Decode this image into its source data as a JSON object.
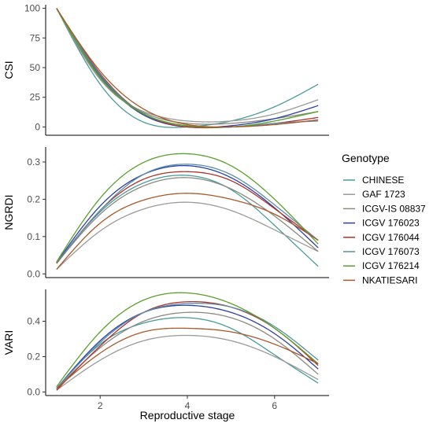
{
  "chart_data": {
    "type": "line",
    "xlabel": "Reproductive stage",
    "x_ticks": [
      "2",
      "4",
      "6"
    ],
    "xlim": [
      0.75,
      7.25
    ],
    "legend_title": "Genotype",
    "legend_position": "right",
    "grid": false,
    "x": [
      1,
      2,
      3,
      4,
      5,
      6,
      7
    ],
    "panels": [
      {
        "ylabel": "CSI",
        "ylim": [
          -7,
          103
        ],
        "y_ticks": [
          "0",
          "25",
          "50",
          "75",
          "100"
        ],
        "series": [
          {
            "name": "CHINESE",
            "values": [
              100,
              36,
              4,
              0,
              5,
              17,
              36
            ]
          },
          {
            "name": "GAF 1723",
            "values": [
              100,
              40,
              13,
              5,
              5,
              11,
              23
            ]
          },
          {
            "name": "ICGV-IS 08837",
            "values": [
              100,
              41,
              12,
              3,
              3,
              7,
              13
            ]
          },
          {
            "name": "ICGV 176023",
            "values": [
              100,
              43,
              10,
              0,
              1,
              7,
              18
            ]
          },
          {
            "name": "ICGV 176044",
            "values": [
              100,
              45,
              11,
              0,
              0,
              3,
              8
            ]
          },
          {
            "name": "ICGV 176073",
            "values": [
              100,
              44,
              11,
              1,
              0,
              3,
              5
            ]
          },
          {
            "name": "ICGV 176214",
            "values": [
              100,
              42,
              11,
              1,
              0,
              5,
              13
            ]
          },
          {
            "name": "NKATIESARI",
            "values": [
              100,
              47,
              15,
              2,
              0,
              2,
              6
            ]
          }
        ]
      },
      {
        "ylabel": "NGRDI",
        "ylim": [
          -0.01,
          0.34
        ],
        "y_ticks": [
          "0.0",
          "0.1",
          "0.2",
          "0.3"
        ],
        "series": [
          {
            "name": "CHINESE",
            "values": [
              0.03,
              0.166,
              0.244,
              0.264,
              0.226,
              0.13,
              0.02
            ]
          },
          {
            "name": "GAF 1723",
            "values": [
              0.012,
              0.115,
              0.174,
              0.192,
              0.17,
              0.118,
              0.06
            ]
          },
          {
            "name": "ICGV-IS 08837",
            "values": [
              0.028,
              0.16,
              0.236,
              0.258,
              0.228,
              0.155,
              0.06
            ]
          },
          {
            "name": "ICGV 176023",
            "values": [
              0.03,
              0.182,
              0.267,
              0.29,
              0.258,
              0.177,
              0.07
            ]
          },
          {
            "name": "ICGV 176044",
            "values": [
              0.028,
              0.17,
              0.254,
              0.274,
              0.25,
              0.175,
              0.09
            ]
          },
          {
            "name": "ICGV 176073",
            "values": [
              0.03,
              0.17,
              0.267,
              0.294,
              0.266,
              0.185,
              0.09
            ]
          },
          {
            "name": "ICGV 176214",
            "values": [
              0.032,
              0.203,
              0.299,
              0.322,
              0.29,
              0.2,
              0.08
            ]
          },
          {
            "name": "NKATIESARI",
            "values": [
              0.012,
              0.136,
              0.198,
              0.216,
              0.2,
              0.16,
              0.09
            ]
          }
        ]
      },
      {
        "ylabel": "VARI",
        "ylim": [
          -0.02,
          0.58
        ],
        "y_ticks": [
          "0.0",
          "0.2",
          "0.4"
        ],
        "series": [
          {
            "name": "CHINESE",
            "values": [
              0.02,
              0.27,
              0.39,
              0.42,
              0.36,
              0.21,
              0.05
            ]
          },
          {
            "name": "GAF 1723",
            "values": [
              0.01,
              0.18,
              0.29,
              0.32,
              0.29,
              0.2,
              0.07
            ]
          },
          {
            "name": "ICGV-IS 08837",
            "values": [
              0.02,
              0.25,
              0.4,
              0.45,
              0.42,
              0.3,
              0.1
            ]
          },
          {
            "name": "ICGV 176023",
            "values": [
              0.02,
              0.29,
              0.45,
              0.49,
              0.45,
              0.33,
              0.13
            ]
          },
          {
            "name": "ICGV 176044",
            "values": [
              0.01,
              0.26,
              0.45,
              0.51,
              0.48,
              0.36,
              0.15
            ]
          },
          {
            "name": "ICGV 176073",
            "values": [
              0.02,
              0.28,
              0.45,
              0.5,
              0.48,
              0.37,
              0.18
            ]
          },
          {
            "name": "ICGV 176214",
            "values": [
              0.03,
              0.34,
              0.52,
              0.56,
              0.5,
              0.36,
              0.16
            ]
          },
          {
            "name": "NKATIESARI",
            "values": [
              0.02,
              0.22,
              0.34,
              0.36,
              0.34,
              0.27,
              0.16
            ]
          }
        ]
      }
    ],
    "colors": {
      "CHINESE": "#4a9b9b",
      "GAF 1723": "#9a9a9a",
      "ICGV-IS 08837": "#8a8a80",
      "ICGV 176023": "#2b3fa8",
      "ICGV 176044": "#b0322a",
      "ICGV 176073": "#5b8ea6",
      "ICGV 176214": "#5aa02c",
      "NKATIESARI": "#a8582a"
    }
  }
}
